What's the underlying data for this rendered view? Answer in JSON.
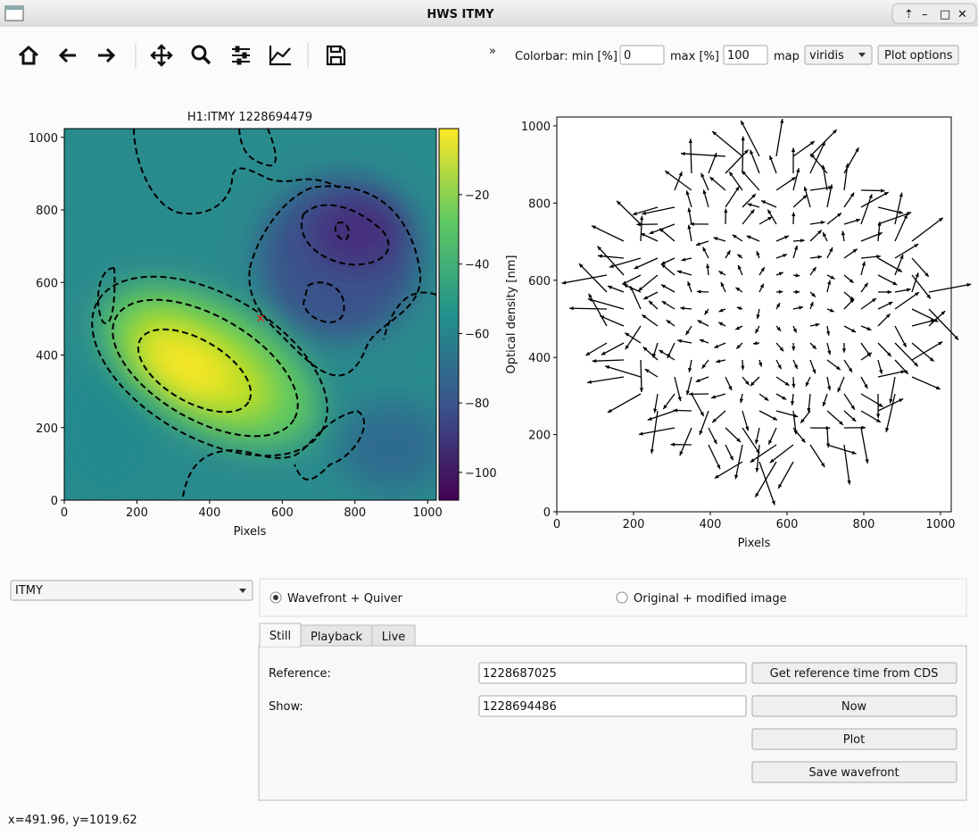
{
  "window": {
    "title": "HWS ITMY"
  },
  "toolbar": {
    "overflow": "»",
    "colorbar_min_label": "Colorbar: min [%]",
    "colorbar_min": "0",
    "colorbar_max_label": "max [%]",
    "colorbar_max": "100",
    "map_label": "map",
    "map": "viridis",
    "plot_options": "Plot options"
  },
  "plots": [
    {
      "title": "H1:ITMY 1228694479",
      "xlabel": "Pixels",
      "xlim": [
        0,
        1024
      ],
      "ylim": [
        0,
        1024
      ],
      "xticks": [
        0,
        200,
        400,
        600,
        800,
        1000
      ],
      "yticks": [
        0,
        200,
        400,
        600,
        800,
        1000
      ],
      "colorbar": {
        "lim": [
          -108,
          -1
        ],
        "ticks": [
          {
            "value": -20,
            "label": "−20"
          },
          {
            "value": -40,
            "label": "−40"
          },
          {
            "value": -60,
            "label": "−60"
          },
          {
            "value": -80,
            "label": "−80"
          },
          {
            "value": -100,
            "label": "−100"
          }
        ]
      }
    },
    {
      "xlabel": "Pixels",
      "ylabel": "Optical density [nm]",
      "xlim": [
        0,
        1028
      ],
      "ylim": [
        0,
        1023
      ],
      "xticks": [
        0,
        200,
        400,
        600,
        800,
        1000
      ],
      "yticks": [
        0,
        200,
        400,
        600,
        800,
        1000
      ]
    }
  ],
  "controls": {
    "detector": "ITMY",
    "radio": [
      "Wavefront + Quiver",
      "Original + modified image"
    ],
    "tabs": [
      "Still",
      "Playback",
      "Live"
    ],
    "reference_label": "Reference:",
    "reference": "1228687025",
    "get_reference": "Get reference time from CDS",
    "show_label": "Show:",
    "show": "1228694486",
    "now": "Now",
    "plot": "Plot",
    "save": "Save wavefront"
  },
  "status": "x=491.96, y=1019.62"
}
